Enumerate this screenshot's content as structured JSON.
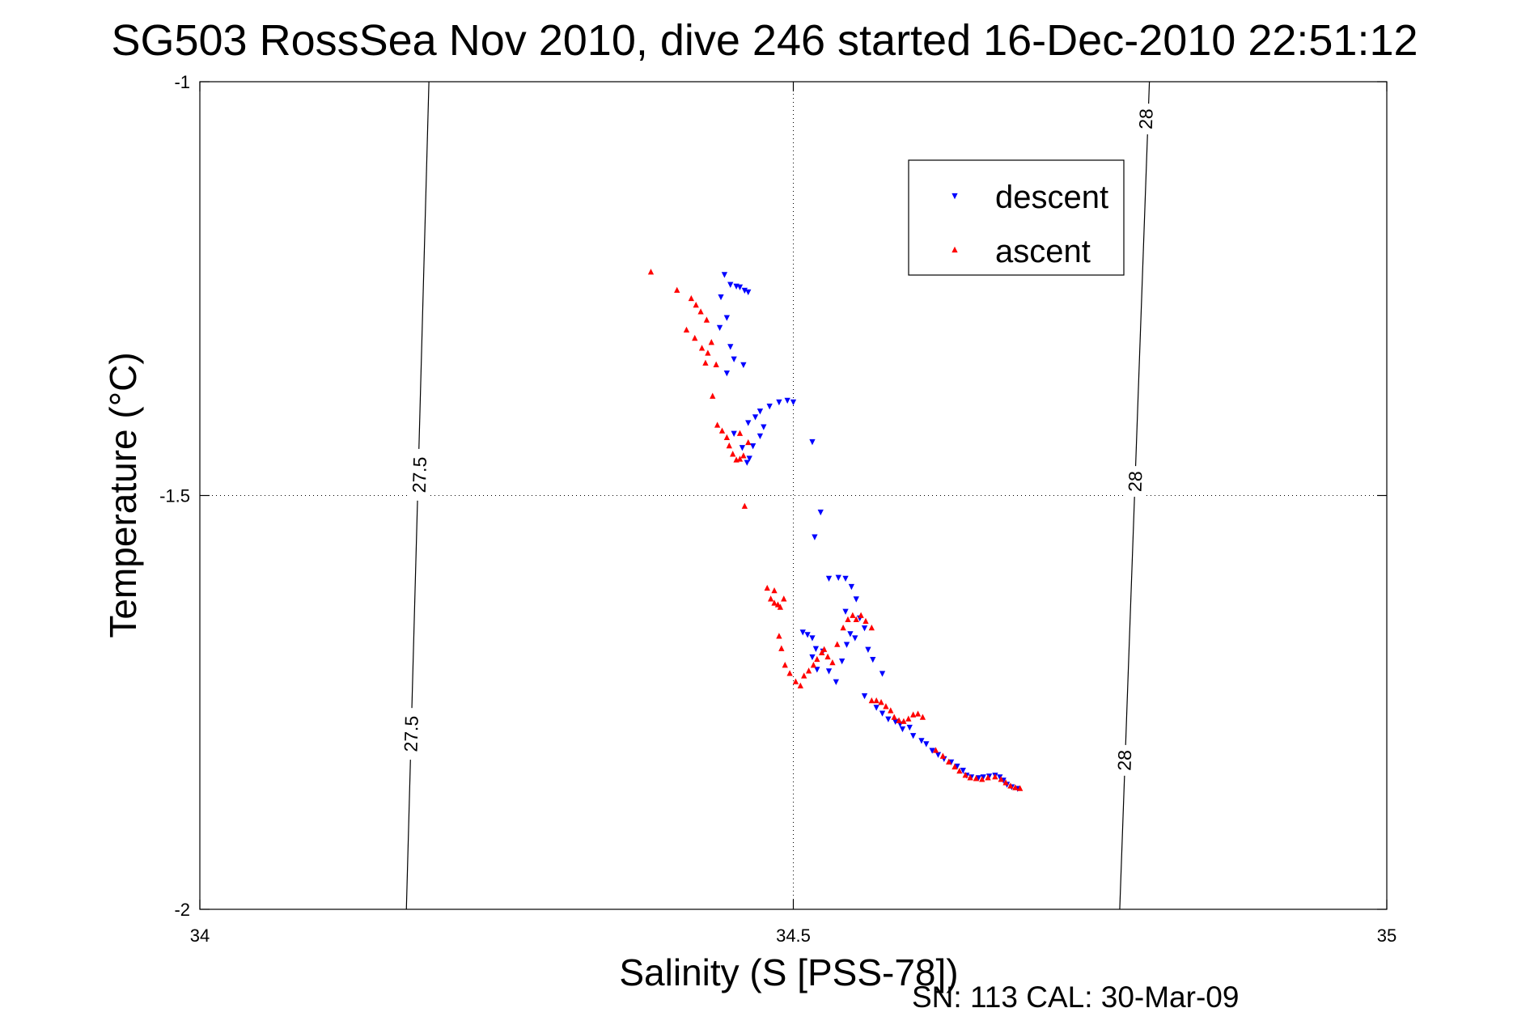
{
  "chart_data": {
    "type": "scatter",
    "title": "SG503 RossSea Nov 2010, dive 246 started 16-Dec-2010 22:51:12",
    "xlabel": "Salinity (S [PSS-78])",
    "ylabel": "Temperature (°C)",
    "xlim": [
      34,
      35
    ],
    "ylim": [
      -2,
      -1
    ],
    "xticks": [
      34,
      34.5,
      35
    ],
    "xtick_labels": [
      "34",
      "34.5",
      "35"
    ],
    "yticks": [
      -2,
      -1.5,
      -1
    ],
    "ytick_labels": [
      "-2",
      "-1.5",
      "-1"
    ],
    "grid": true,
    "legend_position": "top-right",
    "footer": "SN: 113  CAL: 30-Mar-09",
    "series": [
      {
        "name": "descent",
        "color": "#0000ff",
        "marker": "triangle-down",
        "points": [
          [
            34.442,
            -1.233
          ],
          [
            34.447,
            -1.245
          ],
          [
            34.452,
            -1.247
          ],
          [
            34.455,
            -1.248
          ],
          [
            34.459,
            -1.252
          ],
          [
            34.462,
            -1.254
          ],
          [
            34.439,
            -1.26
          ],
          [
            34.444,
            -1.285
          ],
          [
            34.438,
            -1.297
          ],
          [
            34.447,
            -1.32
          ],
          [
            34.45,
            -1.335
          ],
          [
            34.458,
            -1.342
          ],
          [
            34.444,
            -1.352
          ],
          [
            34.462,
            -1.412
          ],
          [
            34.468,
            -1.405
          ],
          [
            34.472,
            -1.398
          ],
          [
            34.48,
            -1.392
          ],
          [
            34.488,
            -1.387
          ],
          [
            34.495,
            -1.385
          ],
          [
            34.5,
            -1.387
          ],
          [
            34.475,
            -1.417
          ],
          [
            34.472,
            -1.428
          ],
          [
            34.466,
            -1.44
          ],
          [
            34.463,
            -1.455
          ],
          [
            34.461,
            -1.46
          ],
          [
            34.457,
            -1.442
          ],
          [
            34.45,
            -1.425
          ],
          [
            34.516,
            -1.435
          ],
          [
            34.523,
            -1.52
          ],
          [
            34.518,
            -1.55
          ],
          [
            34.53,
            -1.6
          ],
          [
            34.538,
            -1.599
          ],
          [
            34.544,
            -1.6
          ],
          [
            34.549,
            -1.61
          ],
          [
            34.553,
            -1.625
          ],
          [
            34.544,
            -1.64
          ],
          [
            34.556,
            -1.648
          ],
          [
            34.56,
            -1.66
          ],
          [
            34.552,
            -1.672
          ],
          [
            34.508,
            -1.665
          ],
          [
            34.512,
            -1.668
          ],
          [
            34.516,
            -1.672
          ],
          [
            34.519,
            -1.685
          ],
          [
            34.516,
            -1.695
          ],
          [
            34.52,
            -1.71
          ],
          [
            34.525,
            -1.688
          ],
          [
            34.53,
            -1.712
          ],
          [
            34.536,
            -1.725
          ],
          [
            34.541,
            -1.7
          ],
          [
            34.545,
            -1.68
          ],
          [
            34.548,
            -1.667
          ],
          [
            34.563,
            -1.686
          ],
          [
            34.567,
            -1.698
          ],
          [
            34.575,
            -1.715
          ],
          [
            34.56,
            -1.742
          ],
          [
            34.57,
            -1.756
          ],
          [
            34.575,
            -1.763
          ],
          [
            34.58,
            -1.77
          ],
          [
            34.586,
            -1.773
          ],
          [
            34.59,
            -1.776
          ],
          [
            34.592,
            -1.782
          ],
          [
            34.598,
            -1.78
          ],
          [
            34.601,
            -1.79
          ],
          [
            34.608,
            -1.796
          ],
          [
            34.612,
            -1.8
          ],
          [
            34.617,
            -1.808
          ],
          [
            34.622,
            -1.813
          ],
          [
            34.627,
            -1.818
          ],
          [
            34.633,
            -1.822
          ],
          [
            34.638,
            -1.827
          ],
          [
            34.643,
            -1.832
          ],
          [
            34.646,
            -1.838
          ],
          [
            34.65,
            -1.84
          ],
          [
            34.656,
            -1.841
          ],
          [
            34.66,
            -1.84
          ],
          [
            34.665,
            -1.839
          ],
          [
            34.67,
            -1.838
          ],
          [
            34.674,
            -1.84
          ],
          [
            34.677,
            -1.844
          ],
          [
            34.68,
            -1.849
          ],
          [
            34.684,
            -1.852
          ],
          [
            34.689,
            -1.854
          ]
        ]
      },
      {
        "name": "ascent",
        "color": "#ff0000",
        "marker": "triangle-up",
        "points": [
          [
            34.38,
            -1.23
          ],
          [
            34.402,
            -1.252
          ],
          [
            34.414,
            -1.262
          ],
          [
            34.418,
            -1.27
          ],
          [
            34.422,
            -1.278
          ],
          [
            34.427,
            -1.288
          ],
          [
            34.41,
            -1.3
          ],
          [
            34.417,
            -1.31
          ],
          [
            34.423,
            -1.322
          ],
          [
            34.428,
            -1.328
          ],
          [
            34.431,
            -1.315
          ],
          [
            34.435,
            -1.342
          ],
          [
            34.426,
            -1.34
          ],
          [
            34.432,
            -1.38
          ],
          [
            34.436,
            -1.415
          ],
          [
            34.44,
            -1.422
          ],
          [
            34.444,
            -1.43
          ],
          [
            34.446,
            -1.44
          ],
          [
            34.449,
            -1.45
          ],
          [
            34.452,
            -1.457
          ],
          [
            34.455,
            -1.456
          ],
          [
            34.458,
            -1.452
          ],
          [
            34.462,
            -1.436
          ],
          [
            34.455,
            -1.425
          ],
          [
            34.459,
            -1.513
          ],
          [
            34.478,
            -1.612
          ],
          [
            34.481,
            -1.625
          ],
          [
            34.484,
            -1.63
          ],
          [
            34.487,
            -1.632
          ],
          [
            34.489,
            -1.635
          ],
          [
            34.492,
            -1.625
          ],
          [
            34.484,
            -1.615
          ],
          [
            34.488,
            -1.67
          ],
          [
            34.49,
            -1.685
          ],
          [
            34.493,
            -1.705
          ],
          [
            34.497,
            -1.715
          ],
          [
            34.502,
            -1.725
          ],
          [
            34.506,
            -1.73
          ],
          [
            34.509,
            -1.718
          ],
          [
            34.513,
            -1.712
          ],
          [
            34.517,
            -1.705
          ],
          [
            34.52,
            -1.698
          ],
          [
            34.524,
            -1.69
          ],
          [
            34.526,
            -1.686
          ],
          [
            34.529,
            -1.695
          ],
          [
            34.533,
            -1.702
          ],
          [
            34.537,
            -1.68
          ],
          [
            34.542,
            -1.66
          ],
          [
            34.546,
            -1.65
          ],
          [
            34.55,
            -1.645
          ],
          [
            34.553,
            -1.65
          ],
          [
            34.557,
            -1.645
          ],
          [
            34.561,
            -1.652
          ],
          [
            34.566,
            -1.66
          ],
          [
            34.566,
            -1.748
          ],
          [
            34.57,
            -1.748
          ],
          [
            34.574,
            -1.75
          ],
          [
            34.578,
            -1.755
          ],
          [
            34.582,
            -1.76
          ],
          [
            34.585,
            -1.768
          ],
          [
            34.589,
            -1.772
          ],
          [
            34.593,
            -1.773
          ],
          [
            34.597,
            -1.77
          ],
          [
            34.601,
            -1.765
          ],
          [
            34.605,
            -1.764
          ],
          [
            34.609,
            -1.768
          ],
          [
            34.62,
            -1.808
          ],
          [
            34.626,
            -1.815
          ],
          [
            34.631,
            -1.822
          ],
          [
            34.636,
            -1.828
          ],
          [
            34.64,
            -1.833
          ],
          [
            34.645,
            -1.838
          ],
          [
            34.649,
            -1.841
          ],
          [
            34.654,
            -1.842
          ],
          [
            34.659,
            -1.843
          ],
          [
            34.664,
            -1.841
          ],
          [
            34.67,
            -1.84
          ],
          [
            34.675,
            -1.843
          ],
          [
            34.679,
            -1.847
          ],
          [
            34.683,
            -1.851
          ],
          [
            34.687,
            -1.853
          ],
          [
            34.691,
            -1.854
          ]
        ]
      }
    ],
    "contours": [
      {
        "label": "27.5",
        "points": [
          [
            34.193,
            -1
          ],
          [
            34.174,
            -2
          ]
        ],
        "label_positions": [
          [
            34.178,
            -1.788
          ],
          [
            34.185,
            -1.475
          ]
        ]
      },
      {
        "label": "28",
        "points": [
          [
            34.8,
            -1
          ],
          [
            34.775,
            -2
          ]
        ],
        "label_positions": [
          [
            34.779,
            -1.82
          ],
          [
            34.788,
            -1.483
          ],
          [
            34.797,
            -1.045
          ]
        ]
      }
    ]
  }
}
